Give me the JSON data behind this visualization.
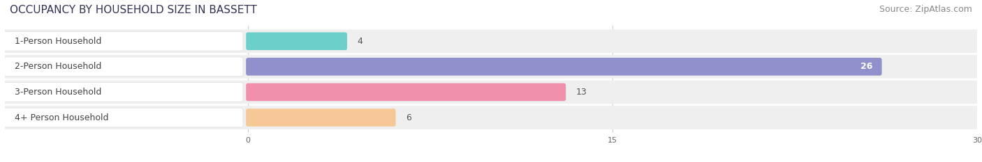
{
  "title": "OCCUPANCY BY HOUSEHOLD SIZE IN BASSETT",
  "source": "Source: ZipAtlas.com",
  "categories": [
    "1-Person Household",
    "2-Person Household",
    "3-Person Household",
    "4+ Person Household"
  ],
  "values": [
    4,
    26,
    13,
    6
  ],
  "bar_colors": [
    "#6dcfca",
    "#9090cc",
    "#f090aa",
    "#f5c896"
  ],
  "bar_bg_colors": [
    "#efefef",
    "#efefef",
    "#efefef",
    "#efefef"
  ],
  "label_box_color": "#ffffff",
  "xlim": [
    0,
    30
  ],
  "xticks": [
    0,
    15,
    30
  ],
  "title_fontsize": 11,
  "source_fontsize": 9,
  "label_fontsize": 9,
  "value_fontsize": 9,
  "background_color": "#ffffff",
  "label_left_circle_colors": [
    "#6dcfca",
    "#9090cc",
    "#f090aa",
    "#f5c896"
  ]
}
